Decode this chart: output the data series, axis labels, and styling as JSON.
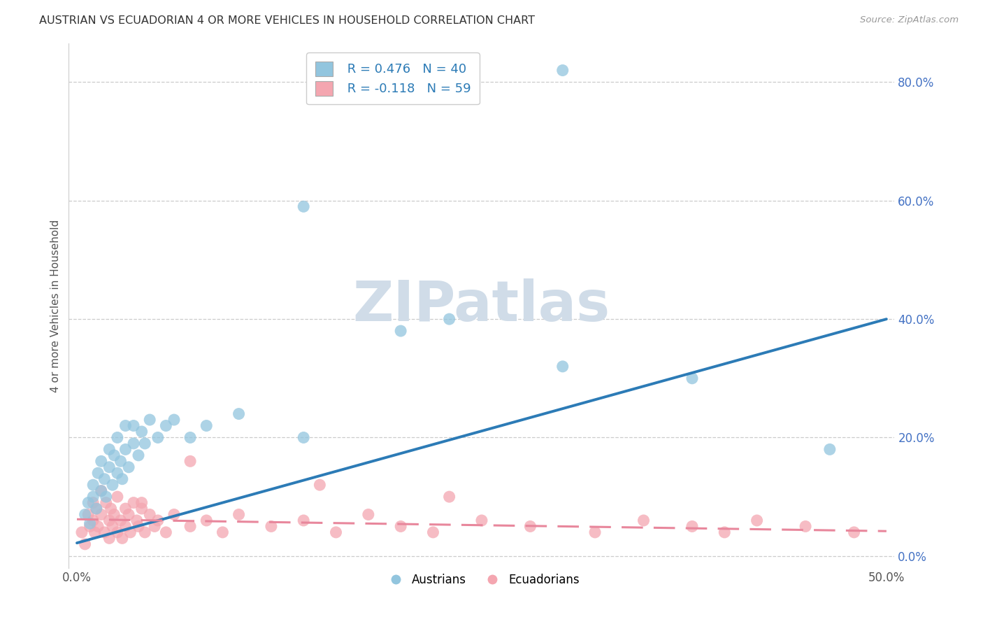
{
  "title": "AUSTRIAN VS ECUADORIAN 4 OR MORE VEHICLES IN HOUSEHOLD CORRELATION CHART",
  "source": "Source: ZipAtlas.com",
  "ylabel": "4 or more Vehicles in Household",
  "xlim": [
    -0.005,
    0.505
  ],
  "ylim": [
    -0.02,
    0.865
  ],
  "xticks": [
    0.0,
    0.5
  ],
  "yticks": [
    0.0,
    0.2,
    0.4,
    0.6,
    0.8
  ],
  "xticklabels": [
    "0.0%",
    "50.0%"
  ],
  "yticklabels": [
    "0.0%",
    "20.0%",
    "40.0%",
    "60.0%",
    "80.0%"
  ],
  "austrians_R": 0.476,
  "austrians_N": 40,
  "ecuadorians_R": -0.118,
  "ecuadorians_N": 59,
  "blue_scatter_color": "#92c5de",
  "pink_scatter_color": "#f4a6b0",
  "blue_line_color": "#2c7bb6",
  "pink_line_color": "#d6604d",
  "pink_line_color2": "#e8879c",
  "watermark_color": "#d0dce8",
  "austrians_x": [
    0.005,
    0.007,
    0.008,
    0.01,
    0.01,
    0.012,
    0.013,
    0.015,
    0.015,
    0.017,
    0.018,
    0.02,
    0.02,
    0.022,
    0.023,
    0.025,
    0.025,
    0.027,
    0.028,
    0.03,
    0.03,
    0.032,
    0.035,
    0.035,
    0.038,
    0.04,
    0.042,
    0.045,
    0.05,
    0.055,
    0.06,
    0.07,
    0.08,
    0.1,
    0.14,
    0.2,
    0.23,
    0.3,
    0.38,
    0.465
  ],
  "austrians_y": [
    0.07,
    0.09,
    0.055,
    0.12,
    0.1,
    0.08,
    0.14,
    0.11,
    0.16,
    0.13,
    0.1,
    0.15,
    0.18,
    0.12,
    0.17,
    0.14,
    0.2,
    0.16,
    0.13,
    0.18,
    0.22,
    0.15,
    0.19,
    0.22,
    0.17,
    0.21,
    0.19,
    0.23,
    0.2,
    0.22,
    0.23,
    0.2,
    0.22,
    0.24,
    0.2,
    0.38,
    0.4,
    0.32,
    0.3,
    0.18
  ],
  "ecuadorians_x": [
    0.003,
    0.005,
    0.007,
    0.008,
    0.01,
    0.01,
    0.011,
    0.012,
    0.013,
    0.015,
    0.015,
    0.017,
    0.018,
    0.02,
    0.02,
    0.021,
    0.022,
    0.023,
    0.025,
    0.025,
    0.027,
    0.028,
    0.03,
    0.03,
    0.032,
    0.033,
    0.035,
    0.037,
    0.038,
    0.04,
    0.042,
    0.045,
    0.048,
    0.05,
    0.055,
    0.06,
    0.07,
    0.08,
    0.09,
    0.1,
    0.12,
    0.14,
    0.16,
    0.18,
    0.2,
    0.22,
    0.25,
    0.28,
    0.32,
    0.35,
    0.38,
    0.4,
    0.42,
    0.45,
    0.48,
    0.23,
    0.15,
    0.07,
    0.04
  ],
  "ecuadorians_y": [
    0.04,
    0.02,
    0.07,
    0.05,
    0.09,
    0.06,
    0.04,
    0.08,
    0.05,
    0.11,
    0.07,
    0.04,
    0.09,
    0.06,
    0.03,
    0.08,
    0.05,
    0.07,
    0.04,
    0.1,
    0.06,
    0.03,
    0.08,
    0.05,
    0.07,
    0.04,
    0.09,
    0.06,
    0.05,
    0.08,
    0.04,
    0.07,
    0.05,
    0.06,
    0.04,
    0.07,
    0.05,
    0.06,
    0.04,
    0.07,
    0.05,
    0.06,
    0.04,
    0.07,
    0.05,
    0.04,
    0.06,
    0.05,
    0.04,
    0.06,
    0.05,
    0.04,
    0.06,
    0.05,
    0.04,
    0.1,
    0.12,
    0.16,
    0.09
  ],
  "blue_line_x0": 0.0,
  "blue_line_y0": 0.022,
  "blue_line_x1": 0.5,
  "blue_line_y1": 0.4,
  "pink_line_x0": 0.0,
  "pink_line_y0": 0.062,
  "pink_line_x1": 0.5,
  "pink_line_y1": 0.042
}
